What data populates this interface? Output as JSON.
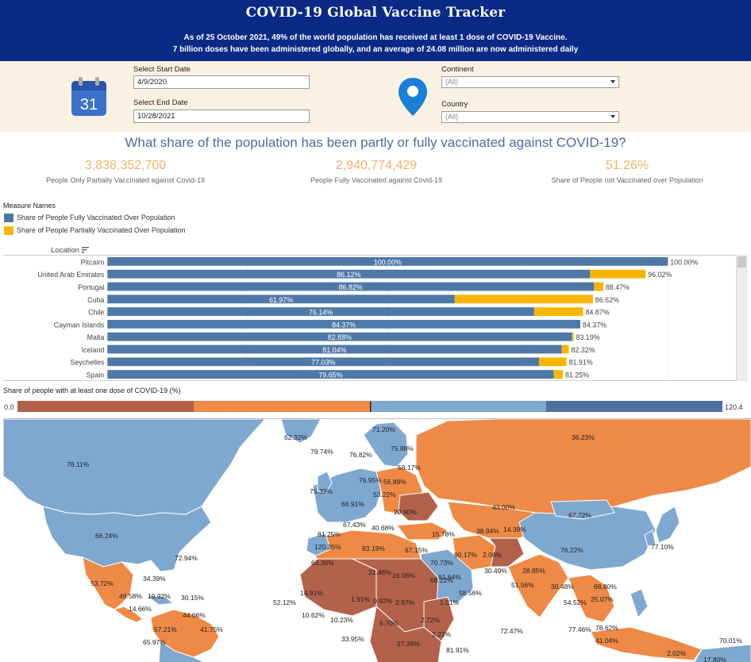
{
  "header": {
    "title": "COVID-19 Global Vaccine Tracker",
    "subtitle_1": "As of 25 October 2021, 49% of the world population has received at least 1 dose of COVID-19 Vaccine.",
    "subtitle_2": "7 billion doses have been administered globally, and an average of 24.08 million are now administered daily"
  },
  "filters": {
    "start_label": "Select Start Date",
    "start_value": "4/9/2020",
    "end_label": "Select End Date",
    "end_value": "10/28/2021",
    "continent_label": "Continent",
    "continent_value": "(All)",
    "country_label": "Country",
    "country_value": "(All)",
    "calendar_icon_text": "31"
  },
  "question": "What share of the population has been partly or fully vaccinated against COVID-19?",
  "kpis": [
    {
      "value": "3,838,352,700",
      "label": "People Only Partially Vaccinated against Covid-19"
    },
    {
      "value": "2,940,774,429",
      "label": "People Fully Vaccinated against Covid-19"
    },
    {
      "value": "51.26%",
      "label": "Share of People not Vaccinated over Population"
    }
  ],
  "legend": {
    "title": "Measure Names",
    "items": [
      {
        "label": "Share of People Fully Vaccinated Over Population",
        "color": "#4e79a7"
      },
      {
        "label": "Share of People Partially Vaccinated Over Population",
        "color": "#f7b500"
      }
    ]
  },
  "chart_data": {
    "type": "bar",
    "orientation": "horizontal",
    "stacked": true,
    "column_header": "Location",
    "categories": [
      "Pitcairn",
      "United Arab Emirates",
      "Portugal",
      "Cuba",
      "Chile",
      "Cayman Islands",
      "Malta",
      "Iceland",
      "Seychelles",
      "Spain"
    ],
    "series": [
      {
        "name": "Share of People Fully Vaccinated Over Population",
        "color": "#4e79a7",
        "values": [
          100.0,
          86.12,
          86.82,
          61.97,
          76.14,
          84.37,
          82.88,
          81.04,
          77.03,
          79.65
        ],
        "labels": [
          "100.00%",
          "86.12%",
          "86.82%",
          "61.97%",
          "76.14%",
          "84.37%",
          "82.88%",
          "81.04%",
          "77.03%",
          "79.65%"
        ]
      },
      {
        "name": "Share of People Partially Vaccinated Over Population",
        "color": "#f7b500",
        "values": [
          0.0,
          9.9,
          1.65,
          24.65,
          8.73,
          0.0,
          0.31,
          1.28,
          4.88,
          1.6
        ]
      }
    ],
    "totals": [
      "100.00%",
      "96.02%",
      "88.47%",
      "86.62%",
      "84.87%",
      "84.37%",
      "83.19%",
      "82.32%",
      "81.91%",
      "81.25%"
    ],
    "xlim": [
      0,
      100
    ]
  },
  "color_legend": {
    "title": "Share of people with at least one dose of COVID-19 (%)",
    "min": "0.0",
    "max": "120.4",
    "colors": [
      "#b3614a",
      "#ee8a45",
      "#7fa8d1",
      "#4e72a0"
    ]
  },
  "map_labels": [
    "78.11%",
    "62.32%",
    "79.74%",
    "71.20%",
    "76.82%",
    "75.88%",
    "36.23%",
    "58.17%",
    "76.95%",
    "56.89%",
    "75.33%",
    "53.22%",
    "66.91%",
    "20.90%",
    "43.00%",
    "67.72%",
    "66.24%",
    "81.25%",
    "67.43%",
    "40.68%",
    "38.94%",
    "14.39%",
    "60.17%",
    "2.08%",
    "76.22%",
    "77.10%",
    "72.94%",
    "120.35%",
    "83.19%",
    "63.36%",
    "67.15%",
    "70.73%",
    "15.78%",
    "30.49%",
    "28.85%",
    "61.64%",
    "21.46%",
    "16.06%",
    "68.22%",
    "51.56%",
    "30.48%",
    "68.80%",
    "34.39%",
    "53.72%",
    "49.58%",
    "19.92%",
    "30.15%",
    "14.91%",
    "1.91%",
    "0.92%",
    "2.97%",
    "58.56%",
    "54.52%",
    "25.07%",
    "14.66%",
    "52.12%",
    "1.01%",
    "10.62%",
    "44.06%",
    "10.23%",
    "2.72%",
    "6.70%",
    "72.47%",
    "57.21%",
    "41.75%",
    "33.95%",
    "27.36%",
    "2.21%",
    "77.46%",
    "78.62%",
    "41.04%",
    "70.01%",
    "65.97%",
    "81.91%",
    "2.02%",
    "17.80%"
  ]
}
